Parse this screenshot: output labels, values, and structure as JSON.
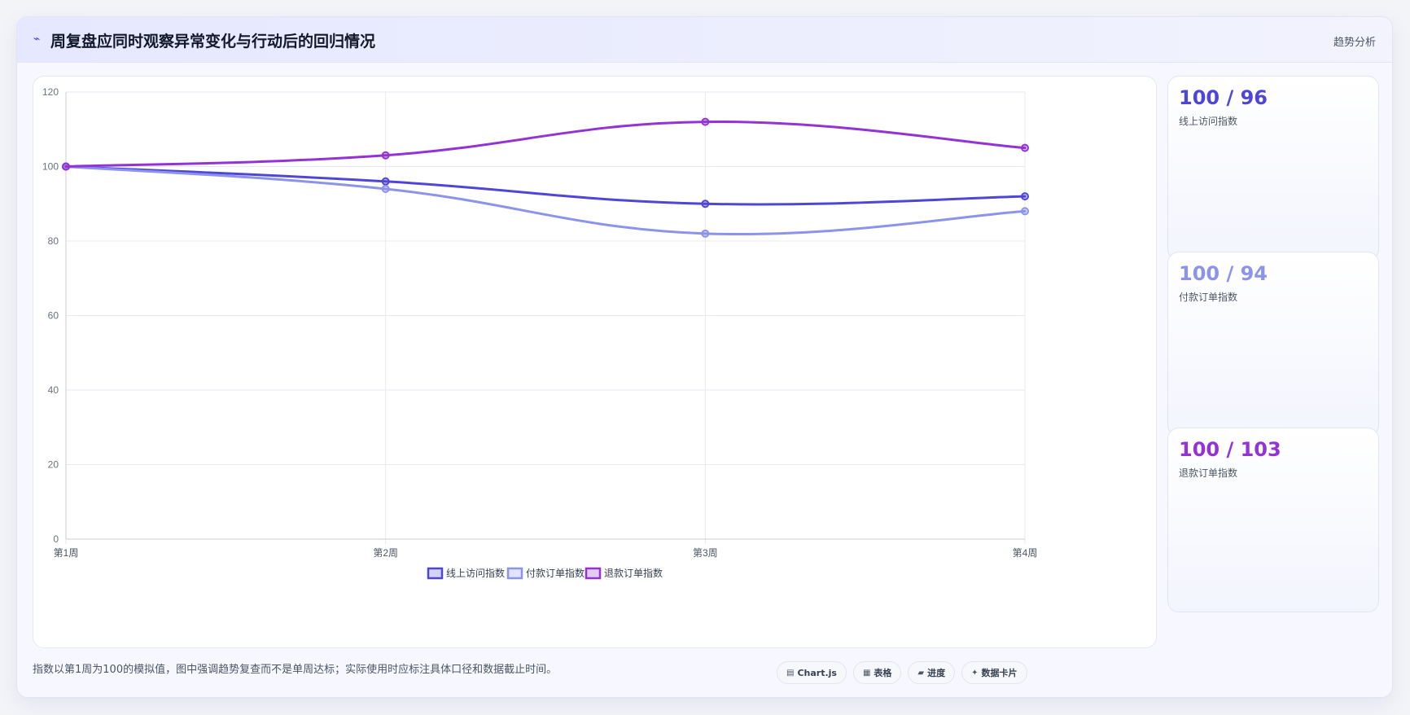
{
  "header": {
    "icon": "trend-line-icon",
    "icon_glyph": "⌁",
    "title": "周复盘应同时观察异常变化与行动后的回归情况",
    "right_label": "趋势分析"
  },
  "chart_data": {
    "type": "line",
    "categories": [
      "第1周",
      "第2周",
      "第3周",
      "第4周"
    ],
    "series": [
      {
        "name": "线上访问指数",
        "values": [
          100,
          96,
          90,
          92
        ],
        "color": "#4f46d8"
      },
      {
        "name": "付款订单指数",
        "values": [
          100,
          94,
          82,
          88
        ],
        "color": "#8b93ea"
      },
      {
        "name": "退款订单指数",
        "values": [
          100,
          103,
          112,
          105
        ],
        "color": "#9333d6"
      }
    ],
    "ylim": [
      0,
      120
    ],
    "yticks": [
      "0",
      "20",
      "40",
      "60",
      "80",
      "100",
      "120"
    ],
    "grid": true,
    "legend_position": "bottom-center"
  },
  "side_cards": [
    {
      "value": "100 / 96",
      "label": "线上访问指数",
      "color": "#4f46d8"
    },
    {
      "value": "100 / 94",
      "label": "付款订单指数",
      "color": "#8b93ea"
    },
    {
      "value": "100 / 103",
      "label": "退款订单指数",
      "color": "#9333d6"
    }
  ],
  "footnote": "指数以第1周为100的模拟值，图中强调趋势复查而不是单周达标；实际使用时应标注具体口径和数据截止时间。",
  "tags": [
    {
      "icon": "chart-icon",
      "glyph": "▤",
      "label": "Chart.js"
    },
    {
      "icon": "table-icon",
      "glyph": "▦",
      "label": "表格"
    },
    {
      "icon": "progress-icon",
      "glyph": "▰",
      "label": "进度"
    },
    {
      "icon": "sparkle-icon",
      "glyph": "✦",
      "label": "数据卡片"
    }
  ]
}
